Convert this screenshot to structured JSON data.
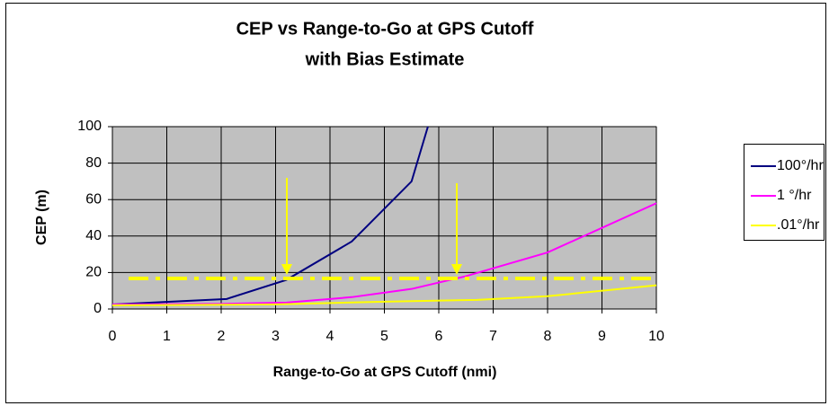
{
  "chart_data": {
    "type": "line",
    "title": "CEP vs Range-to-Go at GPS Cutoff",
    "subtitle": "with Bias Estimate",
    "x_label": "Range-to-Go at GPS Cutoff (nmi)",
    "y_label": "CEP (m)",
    "xlim": [
      0,
      10
    ],
    "xticks": [
      0,
      1,
      2,
      3,
      4,
      5,
      6,
      7,
      8,
      9,
      10
    ],
    "ylim": [
      0,
      100
    ],
    "yticks": [
      0,
      20,
      40,
      60,
      80,
      100
    ],
    "grid": true,
    "legend": "right",
    "background": "#c0c0c0",
    "series": [
      {
        "name": "100°/hr",
        "color": "#000080",
        "x": [
          0,
          2.1,
          3.2,
          4.4,
          5.5,
          5.8
        ],
        "values": [
          2.5,
          5.5,
          16,
          37,
          70,
          100
        ]
      },
      {
        "name": "1 °/hr",
        "color": "#ff00ff",
        "x": [
          0,
          2,
          3.2,
          4.4,
          5.5,
          6.5,
          8,
          10
        ],
        "values": [
          2.5,
          2.8,
          3.5,
          6.5,
          11,
          18,
          31,
          58
        ]
      },
      {
        "name": ".01°/hr",
        "color": "#ffff00",
        "x": [
          0,
          3,
          5,
          6.7,
          8,
          10
        ],
        "values": [
          2,
          2.5,
          4,
          5,
          7,
          13
        ]
      }
    ]
  }
}
